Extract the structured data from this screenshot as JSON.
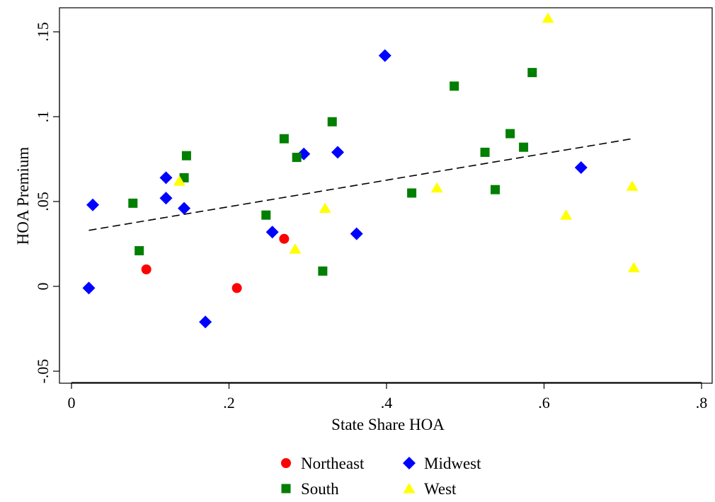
{
  "chart_data": {
    "type": "scatter",
    "title": "",
    "xlabel": "State Share HOA",
    "ylabel": "HOA Premium",
    "xlim": [
      0,
      0.8
    ],
    "ylim": [
      -0.05,
      0.16
    ],
    "x_ticks": [
      {
        "value": 0,
        "label": "0"
      },
      {
        "value": 0.2,
        "label": ".2"
      },
      {
        "value": 0.4,
        "label": ".4"
      },
      {
        "value": 0.6,
        "label": ".6"
      },
      {
        "value": 0.8,
        "label": ".8"
      }
    ],
    "y_ticks": [
      {
        "value": -0.05,
        "label": "-.05"
      },
      {
        "value": 0,
        "label": "0"
      },
      {
        "value": 0.05,
        "label": ".05"
      },
      {
        "value": 0.1,
        "label": ".1"
      },
      {
        "value": 0.15,
        "label": ".15"
      }
    ],
    "grid": false,
    "legend_position": "bottom",
    "series": [
      {
        "name": "Northeast",
        "marker": "circle",
        "color": "#ff0000",
        "points": [
          [
            0.095,
            0.01
          ],
          [
            0.21,
            -0.001
          ],
          [
            0.27,
            0.028
          ]
        ]
      },
      {
        "name": "Midwest",
        "marker": "diamond",
        "color": "#0000ff",
        "points": [
          [
            0.022,
            -0.001
          ],
          [
            0.027,
            0.048
          ],
          [
            0.12,
            0.064
          ],
          [
            0.12,
            0.052
          ],
          [
            0.143,
            0.046
          ],
          [
            0.17,
            -0.021
          ],
          [
            0.255,
            0.032
          ],
          [
            0.295,
            0.078
          ],
          [
            0.338,
            0.079
          ],
          [
            0.362,
            0.031
          ],
          [
            0.398,
            0.136
          ],
          [
            0.647,
            0.07
          ]
        ]
      },
      {
        "name": "South",
        "marker": "square",
        "color": "#007f00",
        "points": [
          [
            0.078,
            0.049
          ],
          [
            0.086,
            0.021
          ],
          [
            0.143,
            0.064
          ],
          [
            0.146,
            0.077
          ],
          [
            0.247,
            0.042
          ],
          [
            0.27,
            0.087
          ],
          [
            0.286,
            0.076
          ],
          [
            0.319,
            0.009
          ],
          [
            0.331,
            0.097
          ],
          [
            0.432,
            0.055
          ],
          [
            0.486,
            0.118
          ],
          [
            0.525,
            0.079
          ],
          [
            0.538,
            0.057
          ],
          [
            0.557,
            0.09
          ],
          [
            0.574,
            0.082
          ],
          [
            0.585,
            0.126
          ]
        ]
      },
      {
        "name": "West",
        "marker": "triangle",
        "color": "#ffff00",
        "points": [
          [
            0.137,
            0.062
          ],
          [
            0.284,
            0.022
          ],
          [
            0.322,
            0.046
          ],
          [
            0.464,
            0.058
          ],
          [
            0.605,
            0.158
          ],
          [
            0.628,
            0.042
          ],
          [
            0.712,
            0.059
          ],
          [
            0.714,
            0.011
          ]
        ]
      }
    ],
    "fit_line": {
      "style": "dashed",
      "color": "#000000",
      "points": [
        [
          0.022,
          0.033
        ],
        [
          0.712,
          0.087
        ]
      ]
    }
  }
}
